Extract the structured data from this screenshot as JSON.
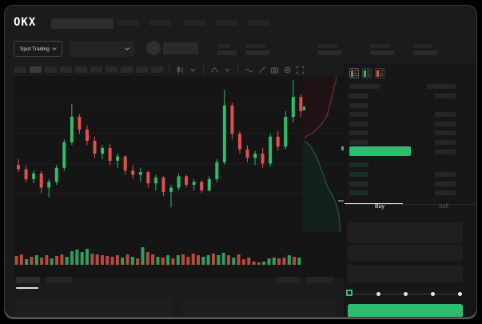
{
  "brand": {
    "name": "OKX"
  },
  "market_bar": {
    "selector_label": "Spot Trading"
  },
  "order_panel": {
    "buy_tab": "Buy",
    "sell_tab": "Sell"
  },
  "colors": {
    "accent_green": "#2ebd70",
    "candle_green": "#2fbd6c",
    "candle_red": "#e0514c",
    "volume_green": "#2f9e60",
    "volume_red": "#b84a42",
    "bid_bar": "#1b2e24",
    "ask_bar": "#262626",
    "depth_ask_fill": "#1f1315",
    "depth_ask_line": "#7a3b3b",
    "depth_bid_fill": "#122119",
    "depth_bid_line": "#2e5f4f"
  },
  "icons": {
    "toolbar": [
      "candle-style-icon",
      "chevron-down-icon",
      "indicator-icon",
      "chevron-down-icon",
      "line-style-icon",
      "draw-icon",
      "camera-icon",
      "settings-icon",
      "fullscreen-icon"
    ],
    "book_views": [
      "book-view-both-icon",
      "book-view-bids-icon",
      "book-view-asks-icon"
    ]
  },
  "layout_counts": {
    "nav_items": 5,
    "timeframe_buttons": 10,
    "ask_rows": 7,
    "bid_rows": 4,
    "slider_stops": 5
  },
  "order_book": {
    "asks_right_bar": [
      1,
      0,
      1,
      1,
      1,
      1,
      1
    ],
    "bids_right_bar": [
      0,
      1,
      1,
      1
    ]
  },
  "chart_data": {
    "type": "candlestick",
    "title": "",
    "xlabel": "",
    "ylabel": "",
    "axes_visible": false,
    "grid": "horizontal-faint",
    "price_scale": {
      "min": 0,
      "max": 100
    },
    "candles": [
      [
        40,
        44,
        35,
        37
      ],
      [
        37,
        40,
        28,
        30
      ],
      [
        30,
        36,
        27,
        34
      ],
      [
        34,
        36,
        20,
        24
      ],
      [
        24,
        30,
        17,
        28
      ],
      [
        28,
        40,
        26,
        38
      ],
      [
        38,
        58,
        36,
        56
      ],
      [
        56,
        83,
        54,
        74
      ],
      [
        74,
        76,
        62,
        65
      ],
      [
        65,
        68,
        54,
        57
      ],
      [
        57,
        60,
        45,
        48
      ],
      [
        48,
        54,
        44,
        52
      ],
      [
        52,
        55,
        40,
        43
      ],
      [
        43,
        48,
        38,
        46
      ],
      [
        46,
        47,
        33,
        36
      ],
      [
        36,
        40,
        30,
        33
      ],
      [
        33,
        38,
        28,
        35
      ],
      [
        35,
        36,
        24,
        27
      ],
      [
        27,
        33,
        22,
        31
      ],
      [
        31,
        32,
        18,
        21
      ],
      [
        21,
        26,
        10,
        24
      ],
      [
        24,
        34,
        22,
        32
      ],
      [
        32,
        33,
        24,
        26
      ],
      [
        26,
        30,
        22,
        28
      ],
      [
        28,
        29,
        20,
        22
      ],
      [
        22,
        32,
        21,
        30
      ],
      [
        30,
        44,
        28,
        42
      ],
      [
        42,
        93,
        40,
        82
      ],
      [
        82,
        84,
        58,
        62
      ],
      [
        62,
        64,
        48,
        51
      ],
      [
        51,
        54,
        42,
        45
      ],
      [
        45,
        50,
        40,
        48
      ],
      [
        48,
        52,
        38,
        41
      ],
      [
        41,
        62,
        39,
        60
      ],
      [
        60,
        64,
        50,
        53
      ],
      [
        53,
        78,
        51,
        74
      ],
      [
        74,
        100,
        70,
        88
      ],
      [
        88,
        90,
        74,
        78
      ]
    ],
    "volume": [
      [
        11,
        "r"
      ],
      [
        13,
        "r"
      ],
      [
        7,
        "g"
      ],
      [
        10,
        "r"
      ],
      [
        12,
        "g"
      ],
      [
        9,
        "r"
      ],
      [
        12,
        "r"
      ],
      [
        8,
        "g"
      ],
      [
        11,
        "r"
      ],
      [
        13,
        "r"
      ],
      [
        10,
        "g"
      ],
      [
        17,
        "g"
      ],
      [
        19,
        "g"
      ],
      [
        16,
        "g"
      ],
      [
        20,
        "g"
      ],
      [
        14,
        "r"
      ],
      [
        13,
        "r"
      ],
      [
        12,
        "r"
      ],
      [
        11,
        "r"
      ],
      [
        10,
        "r"
      ],
      [
        12,
        "r"
      ],
      [
        9,
        "g"
      ],
      [
        13,
        "r"
      ],
      [
        10,
        "g"
      ],
      [
        8,
        "r"
      ],
      [
        22,
        "g"
      ],
      [
        16,
        "r"
      ],
      [
        13,
        "r"
      ],
      [
        10,
        "g"
      ],
      [
        9,
        "r"
      ],
      [
        12,
        "g"
      ],
      [
        8,
        "r"
      ],
      [
        12,
        "g"
      ],
      [
        13,
        "r"
      ],
      [
        10,
        "r"
      ],
      [
        14,
        "r"
      ],
      [
        12,
        "r"
      ],
      [
        10,
        "g"
      ],
      [
        12,
        "g"
      ],
      [
        14,
        "r"
      ],
      [
        12,
        "g"
      ],
      [
        15,
        "g"
      ],
      [
        12,
        "r"
      ],
      [
        9,
        "g"
      ],
      [
        13,
        "r"
      ],
      [
        7,
        "r"
      ],
      [
        9,
        "r"
      ],
      [
        4,
        "r"
      ],
      [
        3,
        "r"
      ],
      [
        4,
        "g"
      ],
      [
        8,
        "g"
      ],
      [
        9,
        "g"
      ],
      [
        8,
        "r"
      ],
      [
        9,
        "r"
      ],
      [
        12,
        "g"
      ],
      [
        10,
        "r"
      ],
      [
        9,
        "g"
      ]
    ],
    "depth": {
      "asks_line": [
        [
          42,
          1
        ],
        [
          41,
          7
        ],
        [
          39,
          13
        ],
        [
          38,
          20
        ],
        [
          36,
          27
        ],
        [
          34,
          35
        ],
        [
          32,
          43
        ],
        [
          30,
          50
        ],
        [
          26,
          56
        ],
        [
          22,
          62
        ],
        [
          17,
          67
        ],
        [
          11,
          72
        ],
        [
          5,
          75
        ],
        [
          2,
          78
        ]
      ],
      "bids_line": [
        [
          2,
          81
        ],
        [
          8,
          86
        ],
        [
          12,
          92
        ],
        [
          16,
          99
        ],
        [
          19,
          106
        ],
        [
          22,
          114
        ],
        [
          25,
          122
        ],
        [
          28,
          131
        ],
        [
          31,
          139
        ],
        [
          35,
          146
        ],
        [
          38,
          152
        ],
        [
          41,
          158
        ],
        [
          43,
          165
        ],
        [
          45,
          173
        ],
        [
          46,
          183
        ],
        [
          47,
          195
        ]
      ]
    }
  }
}
